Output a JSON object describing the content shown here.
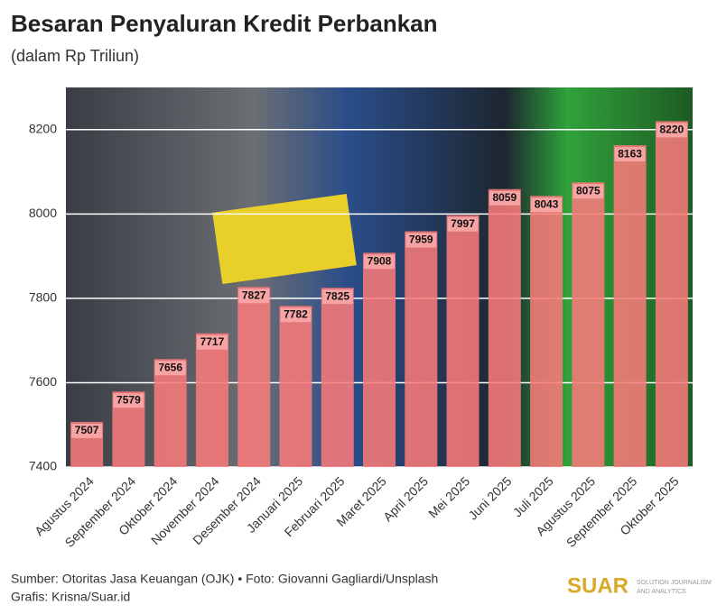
{
  "chart_data": {
    "type": "bar",
    "title": "Besaran Penyaluran Kredit Perbankan",
    "subtitle": "(dalam Rp Triliun)",
    "categories": [
      "Agustus 2024",
      "September 2024",
      "Oktober 2024",
      "November 2024",
      "Desember 2024",
      "Januari 2025",
      "Februari 2025",
      "Maret 2025",
      "April 2025",
      "Mei 2025",
      "Juni 2025",
      "Juli 2025",
      "Agustus 2025",
      "September 2025",
      "Oktober 2025"
    ],
    "values": [
      7507,
      7579,
      7656,
      7717,
      7827,
      7782,
      7825,
      7908,
      7959,
      7997,
      8059,
      8043,
      8075,
      8163,
      8220
    ],
    "color": "#f77a7a",
    "ylim": [
      7400,
      8300
    ],
    "yticks": [
      7400,
      7600,
      7800,
      8000,
      8200
    ],
    "grid": true,
    "source": "Sumber: Otoritas Jasa Keuangan (OJK) • Foto: Giovanni Gagliardi/Unsplash",
    "credit": "Grafis: Krisna/Suar.id",
    "logo": "SUAR",
    "logo_tagline": [
      "SOLUTION JOURNALISM",
      "AND ANALYTICS"
    ]
  }
}
